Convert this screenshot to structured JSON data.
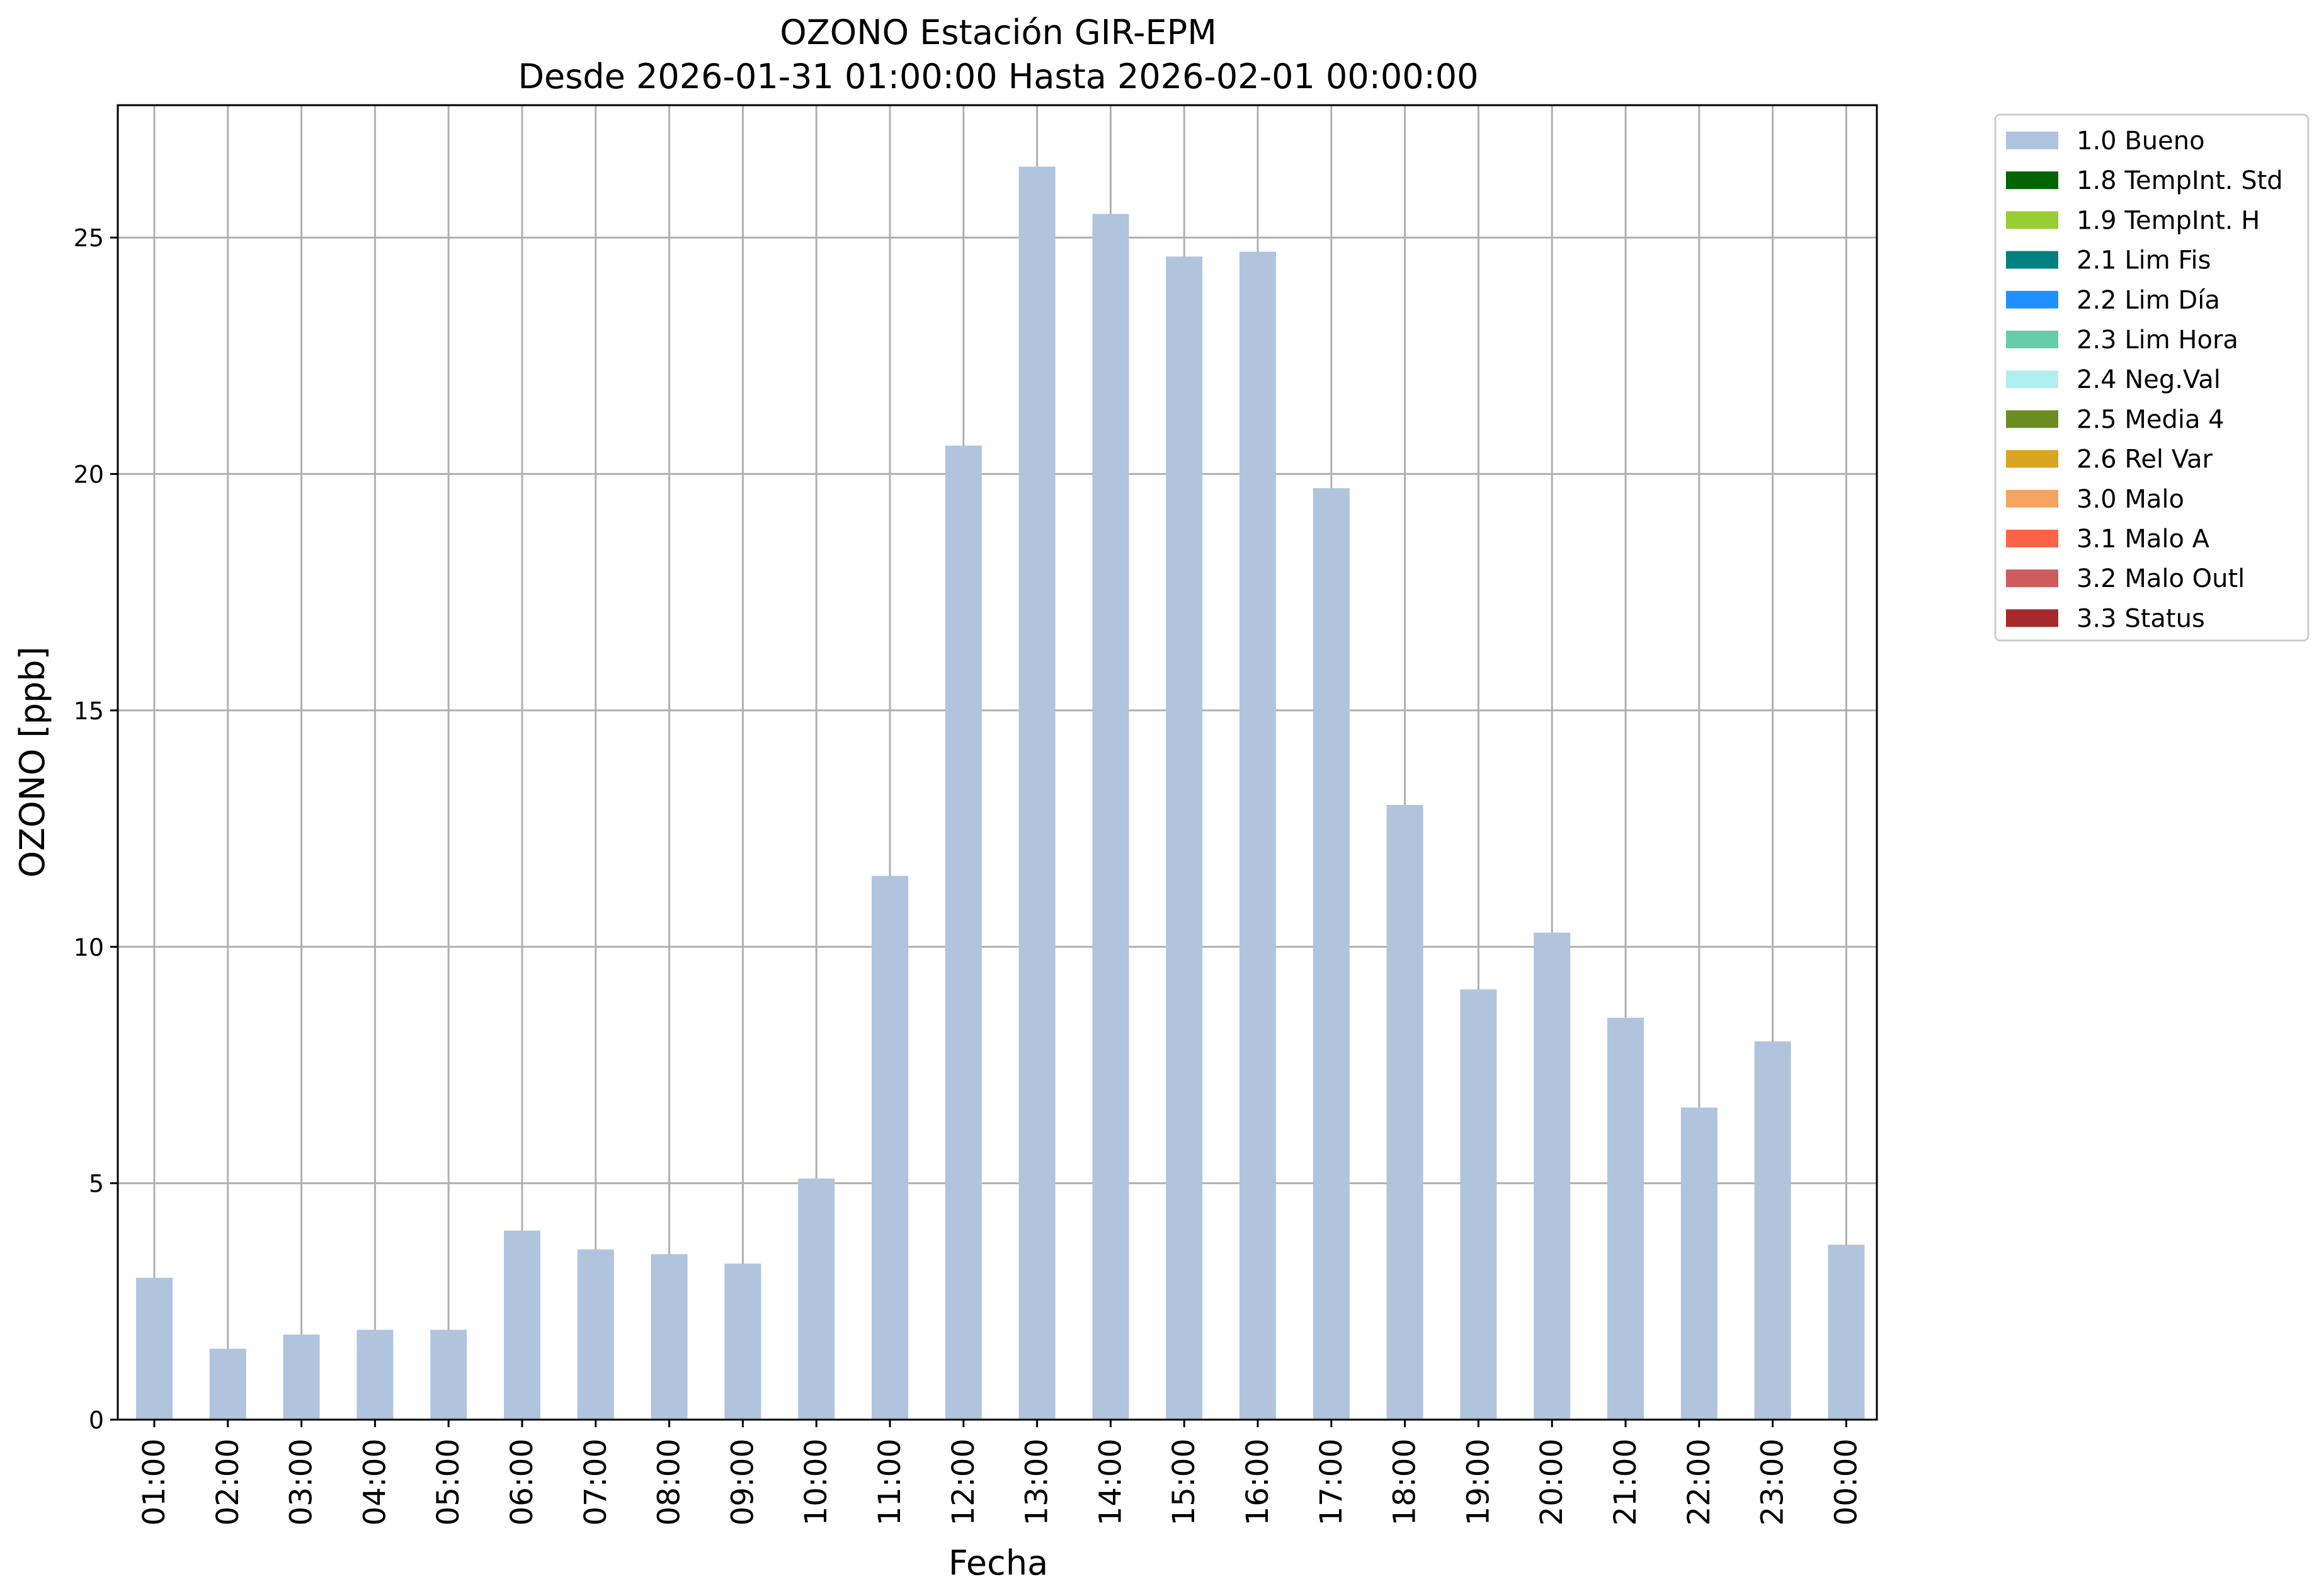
{
  "chart_data": {
    "type": "bar",
    "title": "OZONO Estación GIR-EPM",
    "subtitle": "Desde 2026-01-31 01:00:00 Hasta 2026-02-01 00:00:00",
    "xlabel": "Fecha",
    "ylabel": "OZONO [ppb]",
    "ylim": [
      0,
      27.8
    ],
    "yticks": [
      0,
      5,
      10,
      15,
      20,
      25
    ],
    "grid": true,
    "legend_position": "outside-top-right",
    "categories": [
      "01:00",
      "02:00",
      "03:00",
      "04:00",
      "05:00",
      "06:00",
      "07:00",
      "08:00",
      "09:00",
      "10:00",
      "11:00",
      "12:00",
      "13:00",
      "14:00",
      "15:00",
      "16:00",
      "17:00",
      "18:00",
      "19:00",
      "20:00",
      "21:00",
      "22:00",
      "23:00",
      "00:00"
    ],
    "series": [
      {
        "name": "1.0 Bueno",
        "color": "#b0c4de",
        "values": [
          3.0,
          1.5,
          1.8,
          1.9,
          1.9,
          4.0,
          3.6,
          3.5,
          3.3,
          5.1,
          11.5,
          20.6,
          26.5,
          25.5,
          24.6,
          24.7,
          19.7,
          13.0,
          9.1,
          10.3,
          8.5,
          6.6,
          8.0,
          3.7
        ]
      }
    ],
    "legend": [
      {
        "label": "1.0 Bueno",
        "color": "#b0c4de"
      },
      {
        "label": "1.8 TempInt. Std",
        "color": "#006400"
      },
      {
        "label": "1.9 TempInt. H",
        "color": "#9acd32"
      },
      {
        "label": "2.1 Lim Fis",
        "color": "#008080"
      },
      {
        "label": "2.2 Lim Día",
        "color": "#1e90ff"
      },
      {
        "label": "2.3 Lim Hora",
        "color": "#66cdaa"
      },
      {
        "label": "2.4 Neg.Val",
        "color": "#afeeee"
      },
      {
        "label": "2.5 Media 4",
        "color": "#6b8e23"
      },
      {
        "label": "2.6 Rel Var",
        "color": "#daa520"
      },
      {
        "label": "3.0 Malo",
        "color": "#f4a460"
      },
      {
        "label": "3.1 Malo A",
        "color": "#ff6347"
      },
      {
        "label": "3.2 Malo Outl",
        "color": "#cd5c5c"
      },
      {
        "label": "3.3 Status",
        "color": "#a52a2a"
      }
    ]
  }
}
